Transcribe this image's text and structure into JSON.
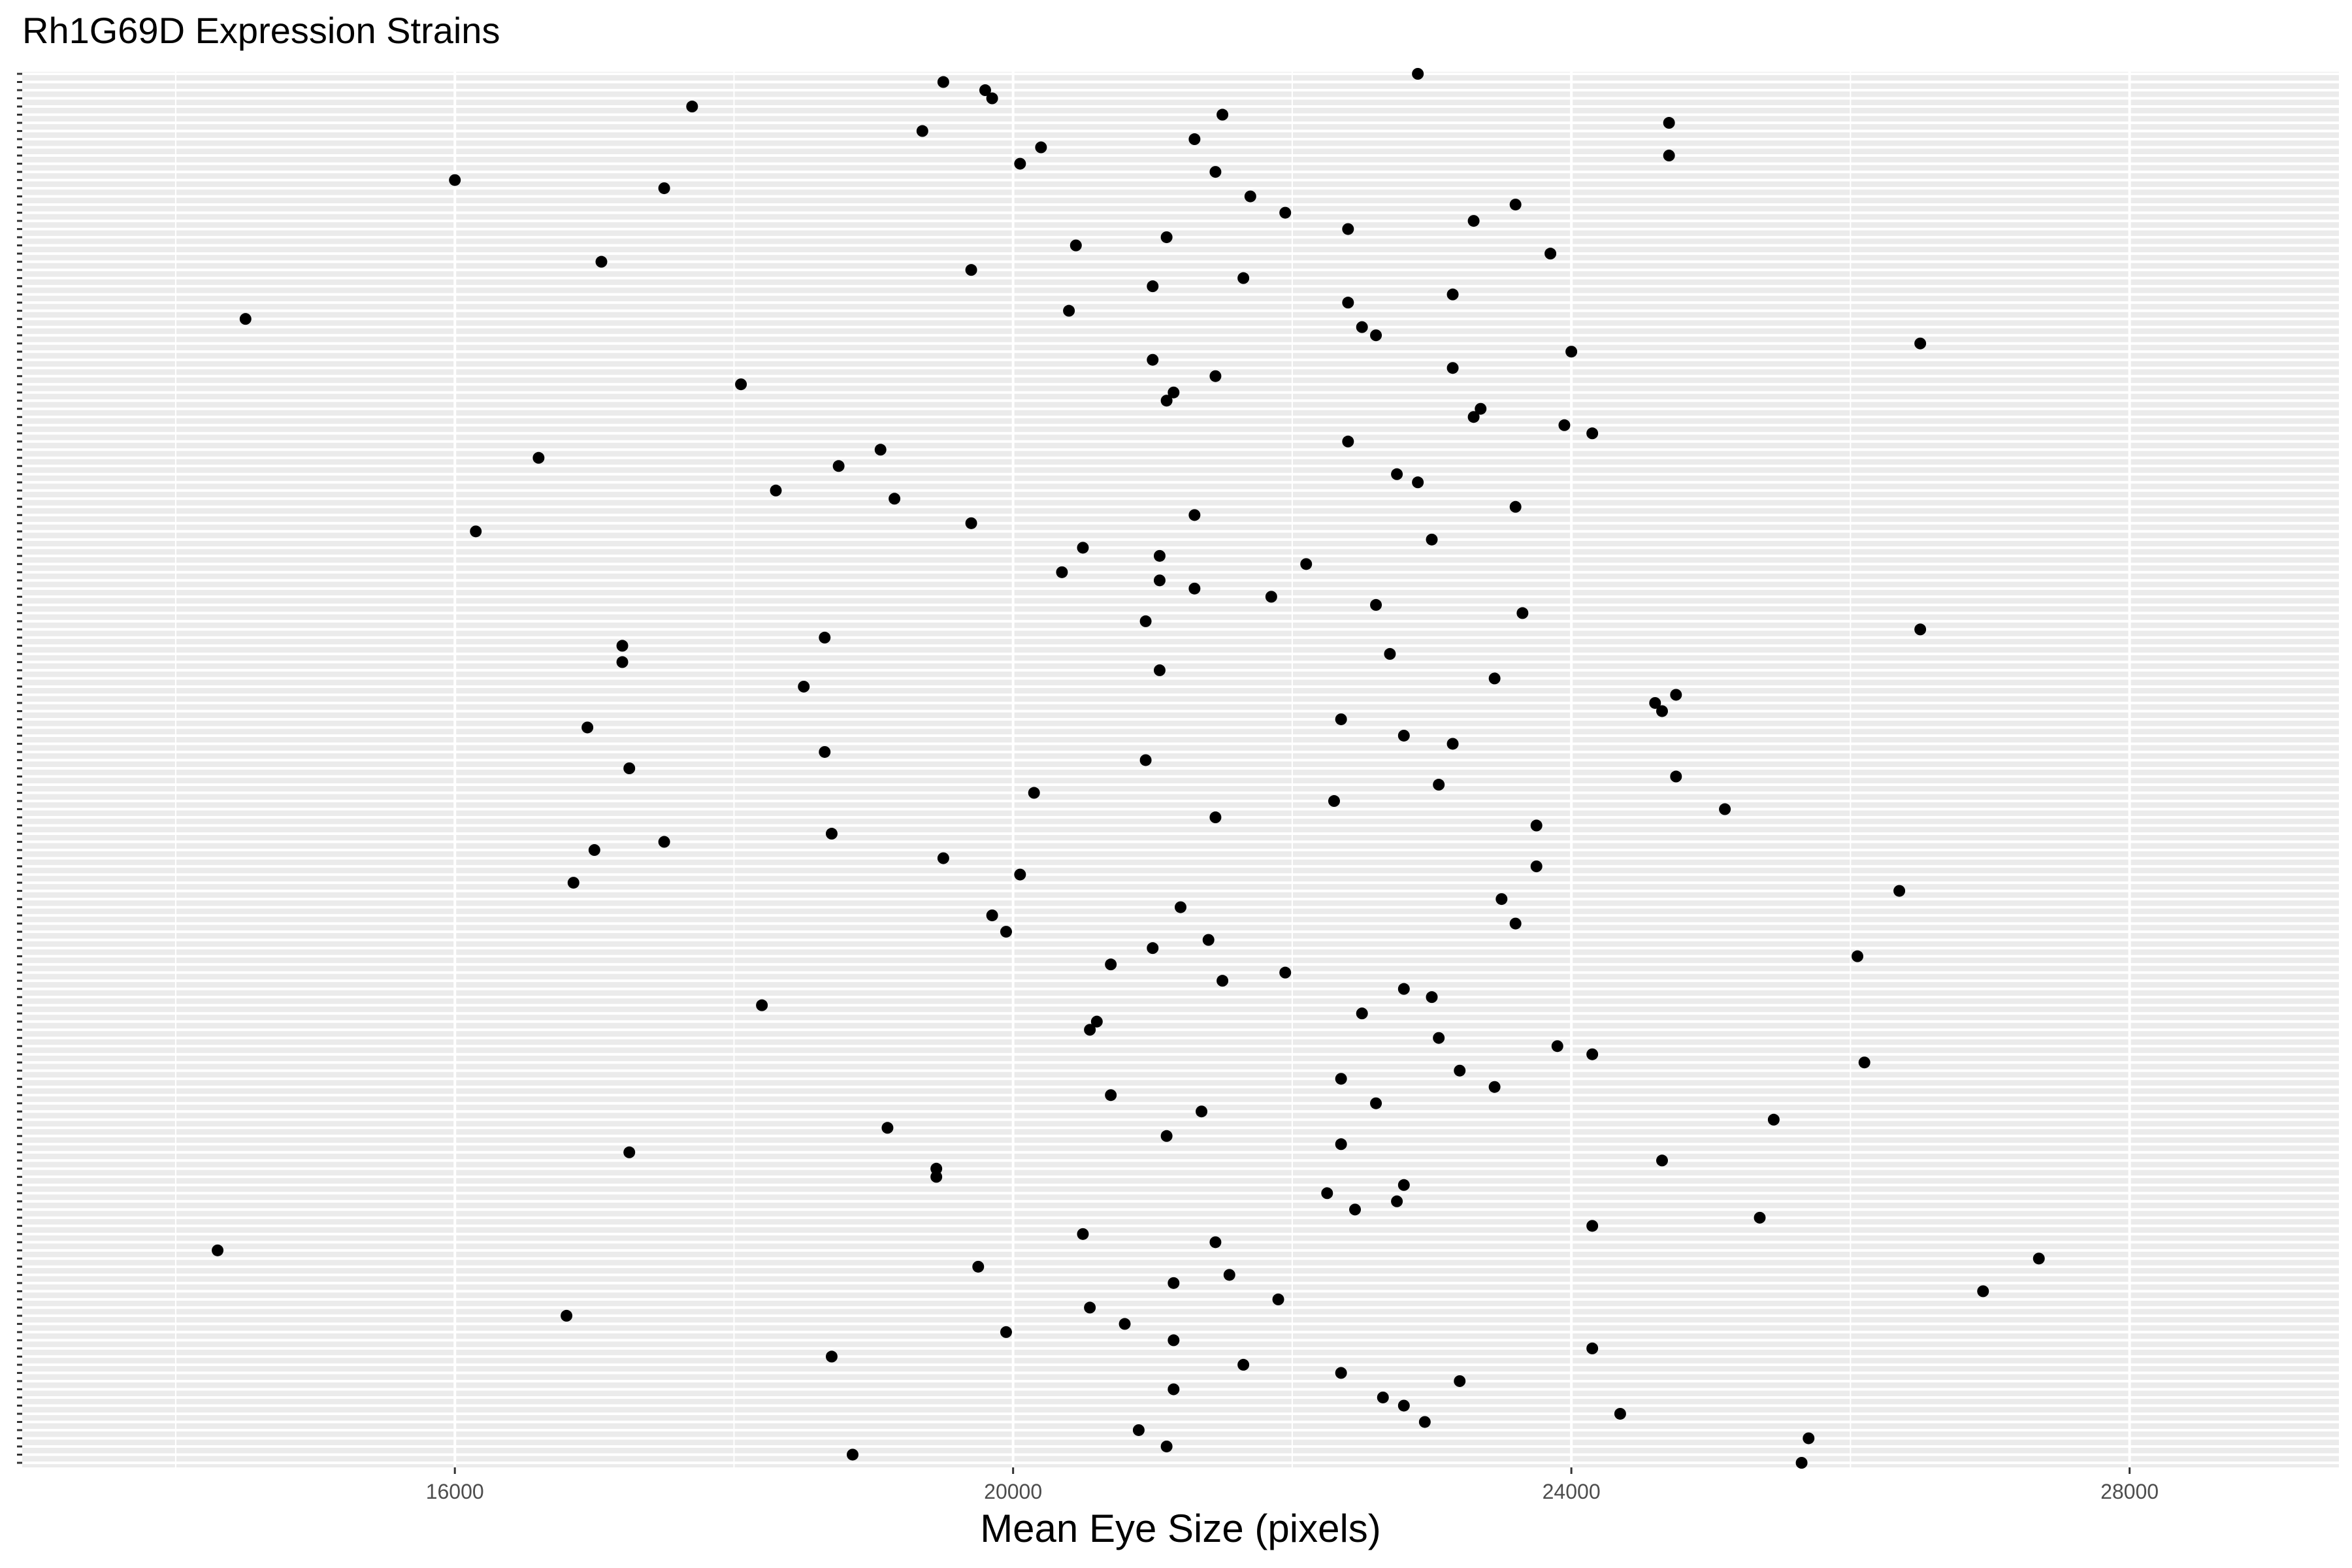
{
  "chart_data": {
    "type": "scatter",
    "title": "Rh1G69D Expression Strains",
    "xlabel": "Mean Eye Size (pixels)",
    "ylabel": "",
    "xlim": [
      12900,
      29500
    ],
    "x_ticks": [
      16000,
      20000,
      24000,
      28000
    ],
    "x_tick_labels": [
      "16000",
      "20000",
      "24000",
      "28000"
    ],
    "y_tick_labels_visible": false,
    "grid": true,
    "legend": "none",
    "colors": {
      "panel_background": "#ebebeb",
      "grid": "#ffffff",
      "point": "#000000"
    },
    "series": [
      {
        "points": [
          [
            22900,
            1
          ],
          [
            19500,
            2
          ],
          [
            19800,
            3
          ],
          [
            19850,
            4
          ],
          [
            17700,
            5
          ],
          [
            21500,
            6
          ],
          [
            24700,
            7
          ],
          [
            19350,
            8
          ],
          [
            21300,
            9
          ],
          [
            20200,
            10
          ],
          [
            24700,
            11
          ],
          [
            20050,
            12
          ],
          [
            21450,
            13
          ],
          [
            16000,
            14
          ],
          [
            17500,
            15
          ],
          [
            21700,
            16
          ],
          [
            23600,
            17
          ],
          [
            21950,
            18
          ],
          [
            23300,
            19
          ],
          [
            22400,
            20
          ],
          [
            21100,
            21
          ],
          [
            20450,
            22
          ],
          [
            23850,
            23
          ],
          [
            17050,
            24
          ],
          [
            19700,
            25
          ],
          [
            21650,
            26
          ],
          [
            21000,
            27
          ],
          [
            23150,
            28
          ],
          [
            22400,
            29
          ],
          [
            20400,
            30
          ],
          [
            14500,
            31
          ],
          [
            22500,
            32
          ],
          [
            22600,
            33
          ],
          [
            26500,
            34
          ],
          [
            24000,
            35
          ],
          [
            21000,
            36
          ],
          [
            23150,
            37
          ],
          [
            21450,
            38
          ],
          [
            18050,
            39
          ],
          [
            21150,
            40
          ],
          [
            21100,
            41
          ],
          [
            23350,
            42
          ],
          [
            23300,
            43
          ],
          [
            23950,
            44
          ],
          [
            24150,
            45
          ],
          [
            22400,
            46
          ],
          [
            19050,
            47
          ],
          [
            16600,
            48
          ],
          [
            18750,
            49
          ],
          [
            22750,
            50
          ],
          [
            22900,
            51
          ],
          [
            18300,
            52
          ],
          [
            19150,
            53
          ],
          [
            23600,
            54
          ],
          [
            21300,
            55
          ],
          [
            19700,
            56
          ],
          [
            16150,
            57
          ],
          [
            23000,
            58
          ],
          [
            20500,
            59
          ],
          [
            21050,
            60
          ],
          [
            22100,
            61
          ],
          [
            20350,
            62
          ],
          [
            21050,
            63
          ],
          [
            21300,
            64
          ],
          [
            21850,
            65
          ],
          [
            22600,
            66
          ],
          [
            23650,
            67
          ],
          [
            20950,
            68
          ],
          [
            26500,
            69
          ],
          [
            18650,
            70
          ],
          [
            17200,
            71
          ],
          [
            22700,
            72
          ],
          [
            17200,
            73
          ],
          [
            21050,
            74
          ],
          [
            23450,
            75
          ],
          [
            18500,
            76
          ],
          [
            24750,
            77
          ],
          [
            24600,
            78
          ],
          [
            24650,
            79
          ],
          [
            22350,
            80
          ],
          [
            16950,
            81
          ],
          [
            22800,
            82
          ],
          [
            23150,
            83
          ],
          [
            18650,
            84
          ],
          [
            20950,
            85
          ],
          [
            17250,
            86
          ],
          [
            24750,
            87
          ],
          [
            23050,
            88
          ],
          [
            20150,
            89
          ],
          [
            22300,
            90
          ],
          [
            25100,
            91
          ],
          [
            21450,
            92
          ],
          [
            23750,
            93
          ],
          [
            18700,
            94
          ],
          [
            17500,
            95
          ],
          [
            17000,
            96
          ],
          [
            19500,
            97
          ],
          [
            23750,
            98
          ],
          [
            20050,
            99
          ],
          [
            16850,
            100
          ],
          [
            26350,
            101
          ],
          [
            23500,
            102
          ],
          [
            21200,
            103
          ],
          [
            19850,
            104
          ],
          [
            23600,
            105
          ],
          [
            19950,
            106
          ],
          [
            21400,
            107
          ],
          [
            21000,
            108
          ],
          [
            26050,
            109
          ],
          [
            20700,
            110
          ],
          [
            21950,
            111
          ],
          [
            21500,
            112
          ],
          [
            22800,
            113
          ],
          [
            23000,
            114
          ],
          [
            18200,
            115
          ],
          [
            22500,
            116
          ],
          [
            20600,
            117
          ],
          [
            20550,
            118
          ],
          [
            23050,
            119
          ],
          [
            23900,
            120
          ],
          [
            24150,
            121
          ],
          [
            26100,
            122
          ],
          [
            23200,
            123
          ],
          [
            22350,
            124
          ],
          [
            23450,
            125
          ],
          [
            20700,
            126
          ],
          [
            22600,
            127
          ],
          [
            21350,
            128
          ],
          [
            25450,
            129
          ],
          [
            19100,
            130
          ],
          [
            21100,
            131
          ],
          [
            22350,
            132
          ],
          [
            17250,
            133
          ],
          [
            24650,
            134
          ],
          [
            19450,
            135
          ],
          [
            19450,
            136
          ],
          [
            22800,
            137
          ],
          [
            22250,
            138
          ],
          [
            22750,
            139
          ],
          [
            22450,
            140
          ],
          [
            25350,
            141
          ],
          [
            24150,
            142
          ],
          [
            20500,
            143
          ],
          [
            21450,
            144
          ],
          [
            14300,
            145
          ],
          [
            27350,
            146
          ],
          [
            19750,
            147
          ],
          [
            21550,
            148
          ],
          [
            21150,
            149
          ],
          [
            26950,
            150
          ],
          [
            21900,
            151
          ],
          [
            20550,
            152
          ],
          [
            16800,
            153
          ],
          [
            20800,
            154
          ],
          [
            19950,
            155
          ],
          [
            21150,
            156
          ],
          [
            24150,
            157
          ],
          [
            18700,
            158
          ],
          [
            21650,
            159
          ],
          [
            22350,
            160
          ],
          [
            23200,
            161
          ],
          [
            21150,
            162
          ],
          [
            22650,
            163
          ],
          [
            22800,
            164
          ],
          [
            24350,
            165
          ],
          [
            22950,
            166
          ],
          [
            20900,
            167
          ],
          [
            25700,
            168
          ],
          [
            21100,
            169
          ],
          [
            18850,
            170
          ],
          [
            25650,
            171
          ]
        ]
      }
    ]
  }
}
